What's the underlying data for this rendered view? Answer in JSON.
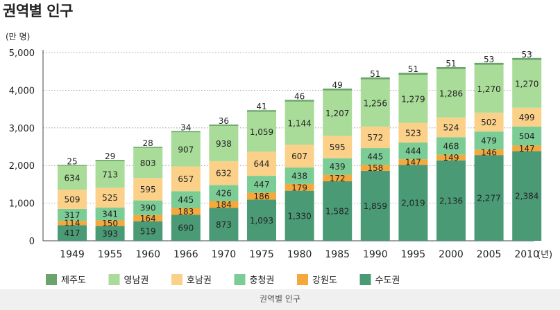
{
  "title": "권역별 인구",
  "caption": "권역별 인구",
  "chart_data": {
    "type": "bar",
    "stacked": true,
    "ylabel": "(만 명)",
    "x_unit": "(년)",
    "ylim": [
      0,
      5000
    ],
    "yticks": [
      0,
      1000,
      2000,
      3000,
      4000,
      5000
    ],
    "ytick_labels": [
      "0",
      "1,000",
      "2,000",
      "3,000",
      "4,000",
      "5,000"
    ],
    "grid": true,
    "legend_position": "bottom",
    "categories": [
      "1949",
      "1955",
      "1960",
      "1966",
      "1970",
      "1975",
      "1980",
      "1985",
      "1990",
      "1995",
      "2000",
      "2005",
      "2010"
    ],
    "series": [
      {
        "name": "수도권",
        "color": "#4a9a76",
        "values": [
          417,
          393,
          519,
          690,
          873,
          1093,
          1330,
          1582,
          1859,
          2019,
          2136,
          2277,
          2384
        ],
        "labels": [
          "417",
          "393",
          "519",
          "690",
          "873",
          "1,093",
          "1,330",
          "1,582",
          "1,859",
          "2,019",
          "2,136",
          "2,277",
          "2,384"
        ]
      },
      {
        "name": "강원도",
        "color": "#f5a93c",
        "values": [
          114,
          150,
          164,
          183,
          184,
          186,
          179,
          172,
          158,
          147,
          149,
          146,
          147
        ],
        "labels": [
          "114",
          "150",
          "164",
          "183",
          "184",
          "186",
          "179",
          "172",
          "158",
          "147",
          "149",
          "146",
          "147"
        ]
      },
      {
        "name": "충청권",
        "color": "#7ccc96",
        "values": [
          317,
          341,
          390,
          445,
          426,
          447,
          438,
          439,
          445,
          444,
          468,
          479,
          504
        ],
        "labels": [
          "317",
          "341",
          "390",
          "445",
          "426",
          "447",
          "438",
          "439",
          "445",
          "444",
          "468",
          "479",
          "504"
        ]
      },
      {
        "name": "호남권",
        "color": "#fbd189",
        "values": [
          509,
          525,
          595,
          657,
          632,
          644,
          607,
          595,
          572,
          523,
          524,
          502,
          499
        ],
        "labels": [
          "509",
          "525",
          "595",
          "657",
          "632",
          "644",
          "607",
          "595",
          "572",
          "523",
          "524",
          "502",
          "499"
        ]
      },
      {
        "name": "영남권",
        "color": "#a8dc98",
        "values": [
          634,
          713,
          803,
          907,
          938,
          1059,
          1144,
          1207,
          1256,
          1279,
          1286,
          1270,
          1270
        ],
        "labels": [
          "634",
          "713",
          "803",
          "907",
          "938",
          "1,059",
          "1,144",
          "1,207",
          "1,256",
          "1,279",
          "1,286",
          "1,270",
          "1,270"
        ]
      },
      {
        "name": "제주도",
        "color": "#6aa46a",
        "values": [
          25,
          29,
          28,
          34,
          36,
          41,
          46,
          49,
          51,
          51,
          51,
          53,
          53
        ],
        "labels": [
          "25",
          "29",
          "28",
          "34",
          "36",
          "41",
          "46",
          "49",
          "51",
          "51",
          "51",
          "53",
          "53"
        ]
      }
    ],
    "legend_order": [
      "제주도",
      "영남권",
      "호남권",
      "충청권",
      "강원도",
      "수도권"
    ]
  }
}
